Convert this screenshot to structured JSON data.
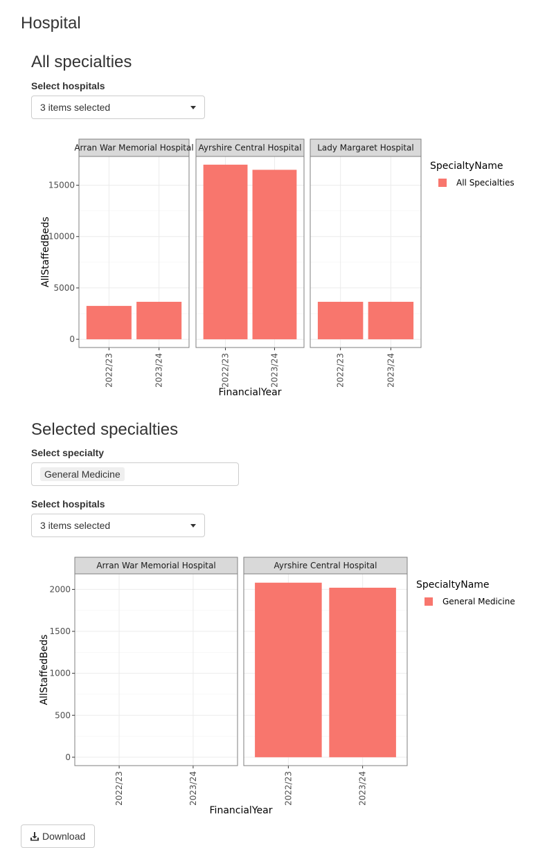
{
  "page": {
    "title": "Hospital"
  },
  "section1": {
    "heading": "All specialties",
    "hospital_select": {
      "label": "Select hospitals",
      "value": "3 items selected"
    }
  },
  "section2": {
    "heading": "Selected specialties",
    "specialty_select": {
      "label": "Select specialty",
      "value": "General Medicine"
    },
    "hospital_select": {
      "label": "Select hospitals",
      "value": "3 items selected"
    }
  },
  "download_label": "Download",
  "colors": {
    "bar": "#F8766D",
    "strip": "#D9D9D9",
    "panel_border": "#7F7F7F",
    "grid": "#EBEBEB"
  },
  "icons": {
    "dropdown": "caret-down-icon",
    "download": "download-icon"
  },
  "chart_data": [
    {
      "type": "bar",
      "facets": [
        "Arran War Memorial Hospital",
        "Ayrshire Central Hospital",
        "Lady Margaret Hospital"
      ],
      "categories": [
        "2022/23",
        "2023/24"
      ],
      "series": [
        {
          "facet": "Arran War Memorial Hospital",
          "values": [
            3250,
            3650
          ]
        },
        {
          "facet": "Ayrshire Central Hospital",
          "values": [
            17000,
            16500
          ]
        },
        {
          "facet": "Lady Margaret Hospital",
          "values": [
            3650,
            3650
          ]
        }
      ],
      "xlabel": "FinancialYear",
      "ylabel": "AllStaffedBeds",
      "yticks": [
        0,
        5000,
        10000,
        15000
      ],
      "ylim": [
        -800,
        17800
      ],
      "legend_title": "SpecialtyName",
      "legend_items": [
        "All Specialties"
      ],
      "legend_position": "right",
      "grid": true
    },
    {
      "type": "bar",
      "facets": [
        "Arran War Memorial Hospital",
        "Ayrshire Central Hospital"
      ],
      "categories": [
        "2022/23",
        "2023/24"
      ],
      "series": [
        {
          "facet": "Arran War Memorial Hospital",
          "values": [
            null,
            null
          ]
        },
        {
          "facet": "Ayrshire Central Hospital",
          "values": [
            2080,
            2020
          ]
        }
      ],
      "xlabel": "FinancialYear",
      "ylabel": "AllStaffedBeds",
      "yticks": [
        0,
        500,
        1000,
        1500,
        2000
      ],
      "ylim": [
        -100,
        2185
      ],
      "legend_title": "SpecialtyName",
      "legend_items": [
        "General Medicine"
      ],
      "legend_position": "right",
      "grid": true
    }
  ]
}
